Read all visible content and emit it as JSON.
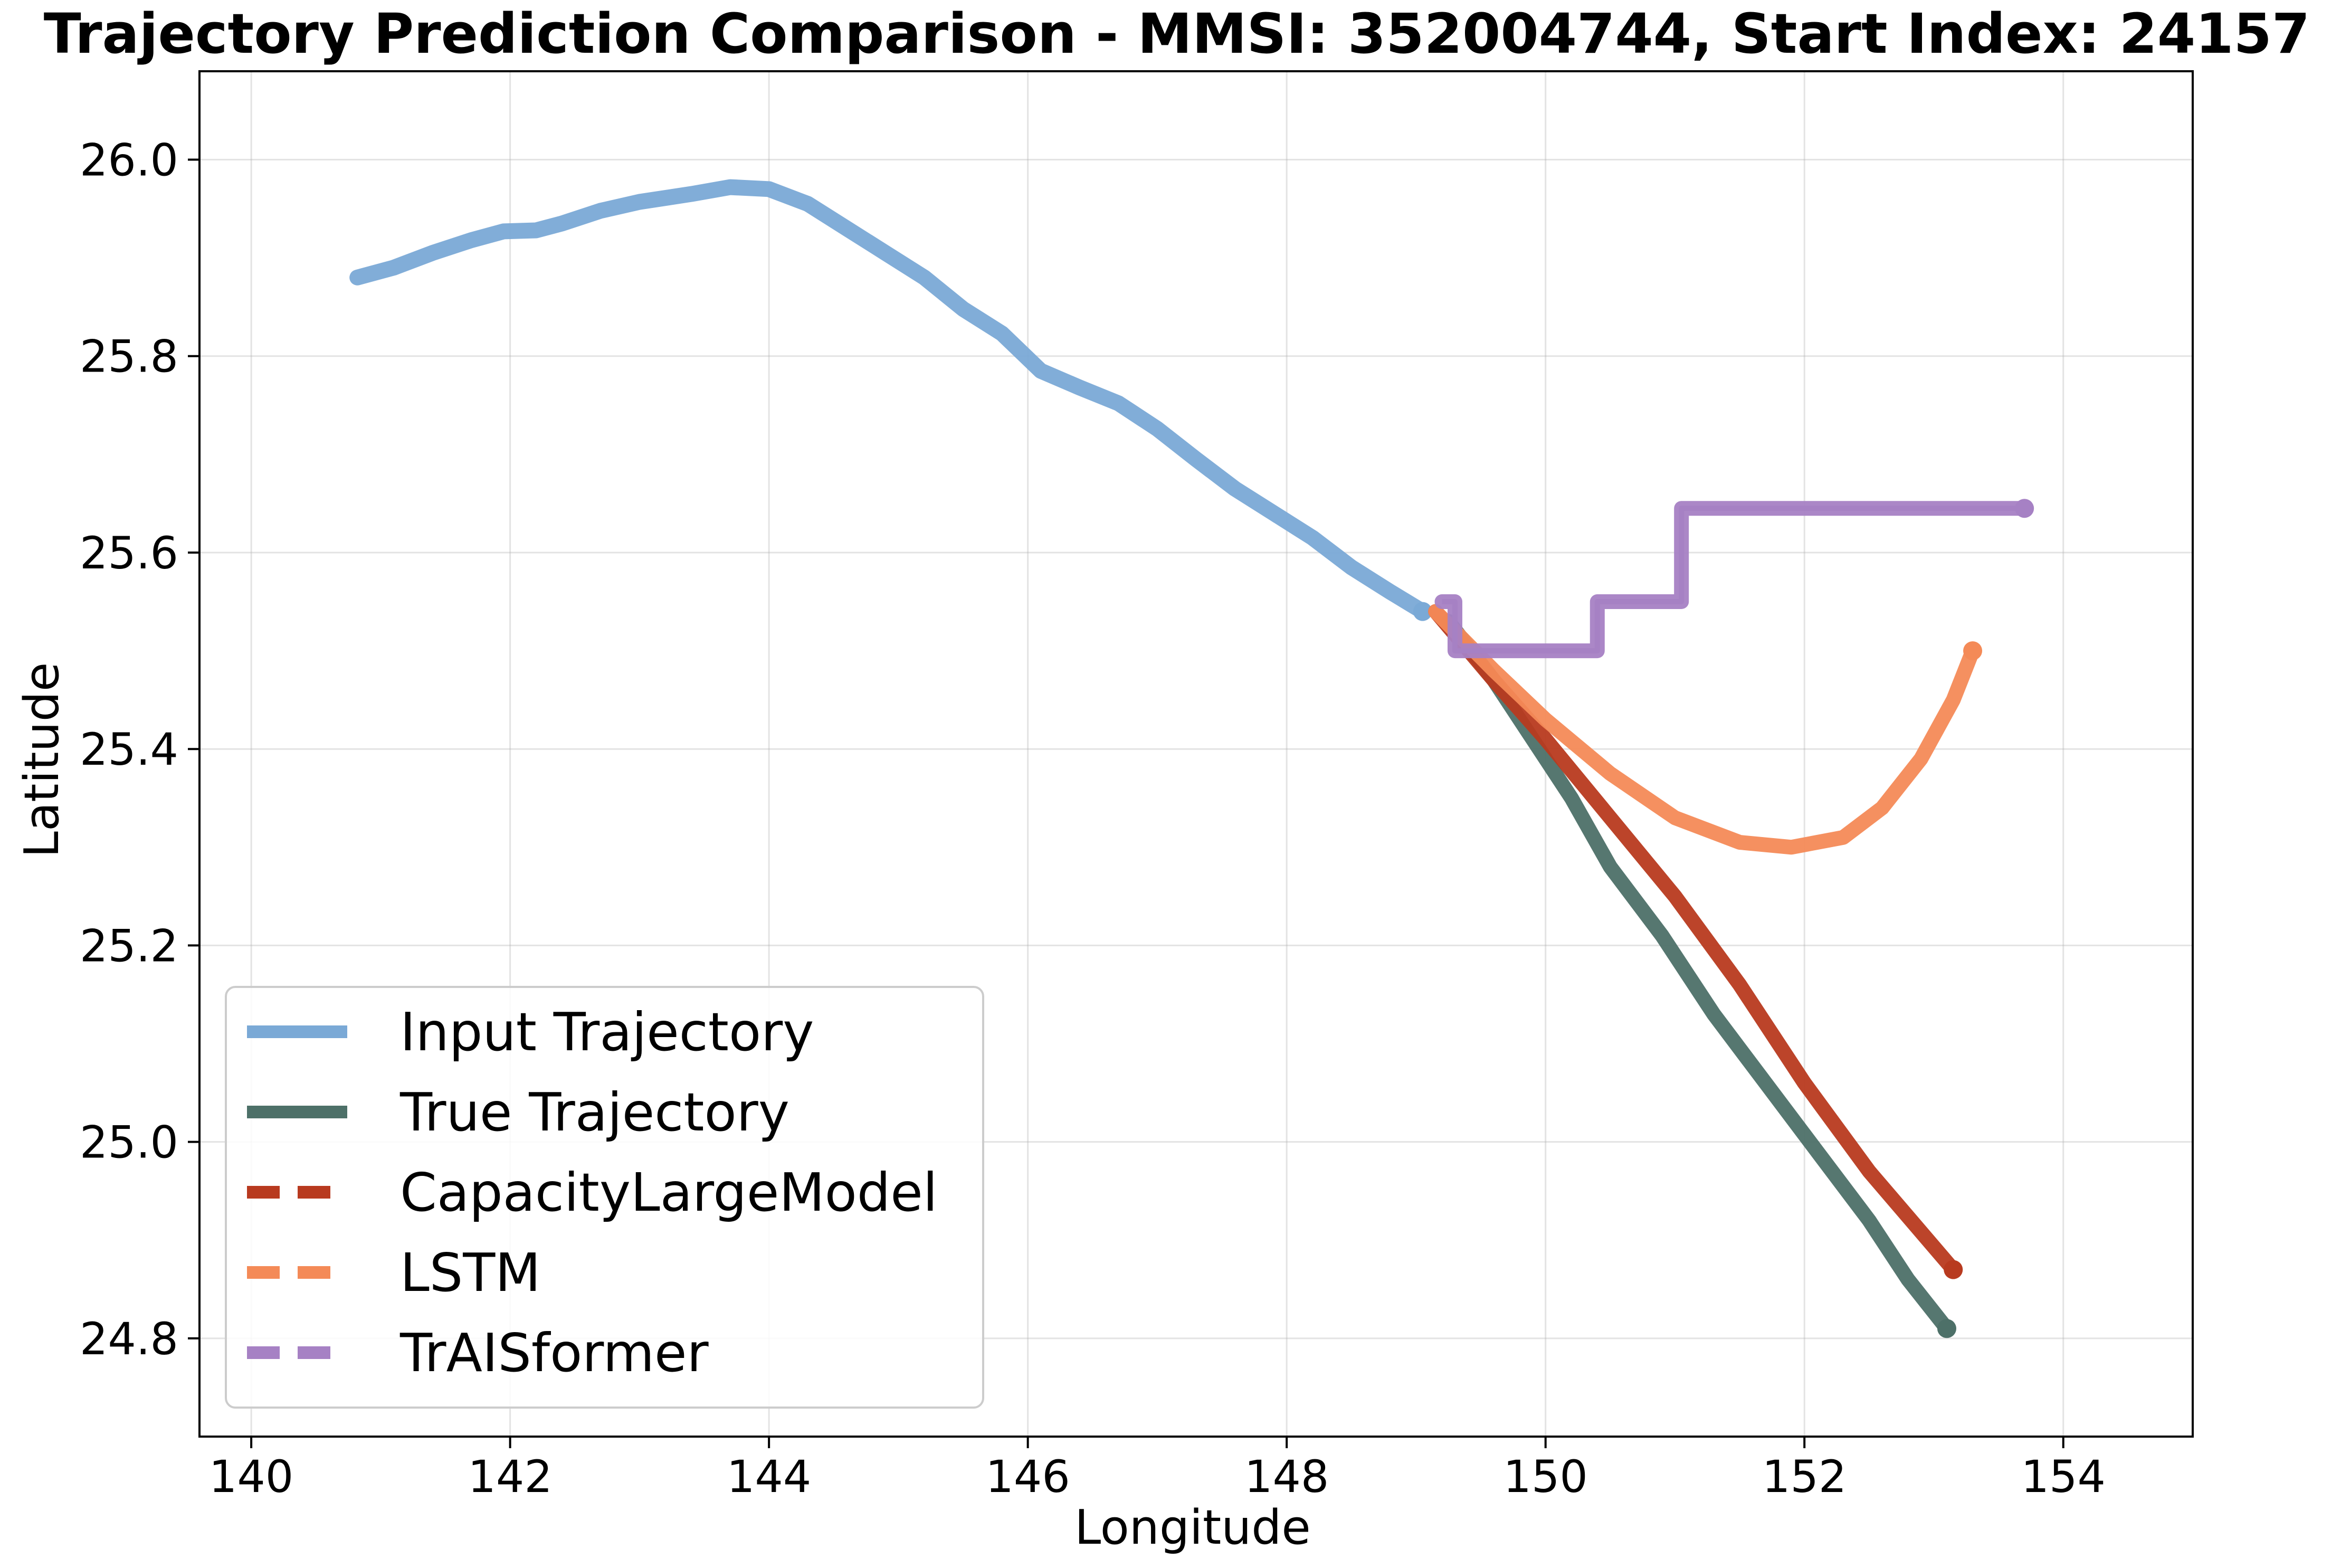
{
  "chart_data": {
    "type": "line",
    "title": "Trajectory Prediction Comparison - MMSI: 352004744, Start Index: 24157",
    "xlabel": "Longitude",
    "ylabel": "Latitude",
    "xlim": [
      139.6,
      155.0
    ],
    "ylim": [
      24.7,
      26.09
    ],
    "xticks": [
      140,
      142,
      144,
      146,
      148,
      150,
      152,
      154
    ],
    "yticks": [
      24.8,
      25.0,
      25.2,
      25.4,
      25.6,
      25.8,
      26.0
    ],
    "xtick_labels": [
      "140",
      "142",
      "144",
      "146",
      "148",
      "150",
      "152",
      "154"
    ],
    "ytick_labels": [
      "24.8",
      "25.0",
      "25.2",
      "25.4",
      "25.6",
      "25.8",
      "26.0"
    ],
    "grid": true,
    "legend_position": "lower-left",
    "series": [
      {
        "name": "Input Trajectory",
        "color": "#7aa9d6",
        "style": "solid",
        "x": [
          140.82,
          141.1,
          141.4,
          141.7,
          141.95,
          142.2,
          142.4,
          142.7,
          143.0,
          143.4,
          143.7,
          144.0,
          144.3,
          144.6,
          144.9,
          145.2,
          145.5,
          145.8,
          146.1,
          146.4,
          146.7,
          147.0,
          147.3,
          147.6,
          147.9,
          148.2,
          148.5,
          148.8,
          149.05
        ],
        "y": [
          25.88,
          25.89,
          25.905,
          25.918,
          25.927,
          25.928,
          25.935,
          25.948,
          25.957,
          25.965,
          25.972,
          25.97,
          25.955,
          25.93,
          25.905,
          25.88,
          25.848,
          25.823,
          25.785,
          25.768,
          25.752,
          25.726,
          25.695,
          25.665,
          25.64,
          25.615,
          25.585,
          25.56,
          25.54
        ]
      },
      {
        "name": "True Trajectory",
        "color": "#4d7068",
        "style": "solid",
        "x": [
          149.25,
          149.6,
          149.9,
          150.2,
          150.5,
          150.9,
          151.3,
          151.7,
          152.1,
          152.5,
          152.8,
          153.1
        ],
        "y": [
          25.53,
          25.47,
          25.41,
          25.35,
          25.28,
          25.21,
          25.13,
          25.06,
          24.99,
          24.92,
          24.86,
          24.81
        ]
      },
      {
        "name": "CapacityLargeModel",
        "color": "#b83a1f",
        "style": "dashed",
        "x": [
          149.15,
          149.6,
          150.0,
          150.5,
          151.0,
          151.5,
          152.0,
          152.5,
          153.15
        ],
        "y": [
          25.54,
          25.47,
          25.41,
          25.33,
          25.25,
          25.16,
          25.06,
          24.97,
          24.87
        ]
      },
      {
        "name": "LSTM",
        "color": "#f48a57",
        "style": "dashed",
        "x": [
          149.15,
          149.6,
          150.0,
          150.5,
          151.0,
          151.5,
          151.9,
          152.3,
          152.6,
          152.9,
          153.15,
          153.3
        ],
        "y": [
          25.54,
          25.48,
          25.43,
          25.375,
          25.33,
          25.305,
          25.3,
          25.31,
          25.34,
          25.39,
          25.45,
          25.5
        ]
      },
      {
        "name": "TrAISformer",
        "color": "#a681c4",
        "style": "dashed",
        "x": [
          149.2,
          149.3,
          149.3,
          150.4,
          150.4,
          150.4,
          151.05,
          151.05,
          153.7
        ],
        "y": [
          25.55,
          25.55,
          25.5,
          25.5,
          25.5,
          25.55,
          25.55,
          25.645,
          25.645
        ]
      }
    ]
  }
}
